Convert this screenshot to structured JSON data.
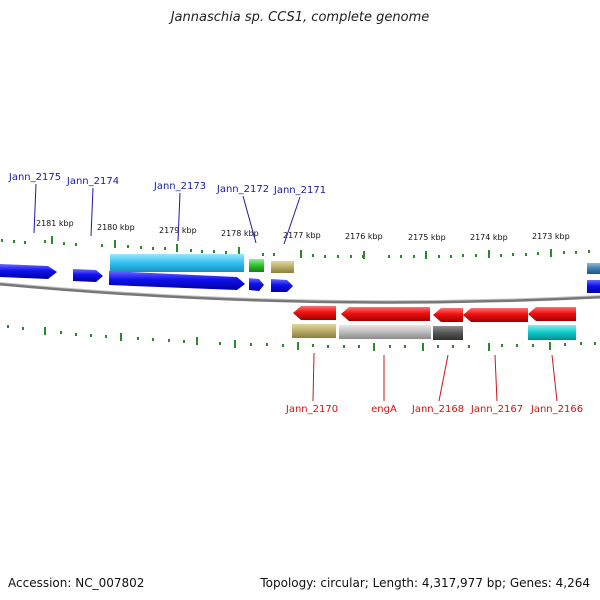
{
  "title": "Jannaschia sp. CCS1, complete genome",
  "footer": {
    "accession": "Accession: NC_007802",
    "summary": "Topology: circular; Length: 4,317,977 bp; Genes: 4,264"
  },
  "kbp_labels": [
    "2181 kbp",
    "2180 kbp",
    "2179 kbp",
    "2178 kbp",
    "2177 kbp",
    "2176 kbp",
    "2175 kbp",
    "2174 kbp",
    "2173 kbp"
  ],
  "genes_top": [
    "Jann_2175",
    "Jann_2174",
    "Jann_2173",
    "Jann_2172",
    "Jann_2171"
  ],
  "genes_bottom": [
    "Jann_2170",
    "engA",
    "Jann_2168",
    "Jann_2167",
    "Jann_2166"
  ],
  "colors": {
    "forward_gene": "#1010ee",
    "reverse_gene": "#ee1010",
    "top_label": "#1a1aaa",
    "bottom_label": "#cc1515",
    "tick": "#2a8a2a",
    "backbone": "#888888"
  }
}
